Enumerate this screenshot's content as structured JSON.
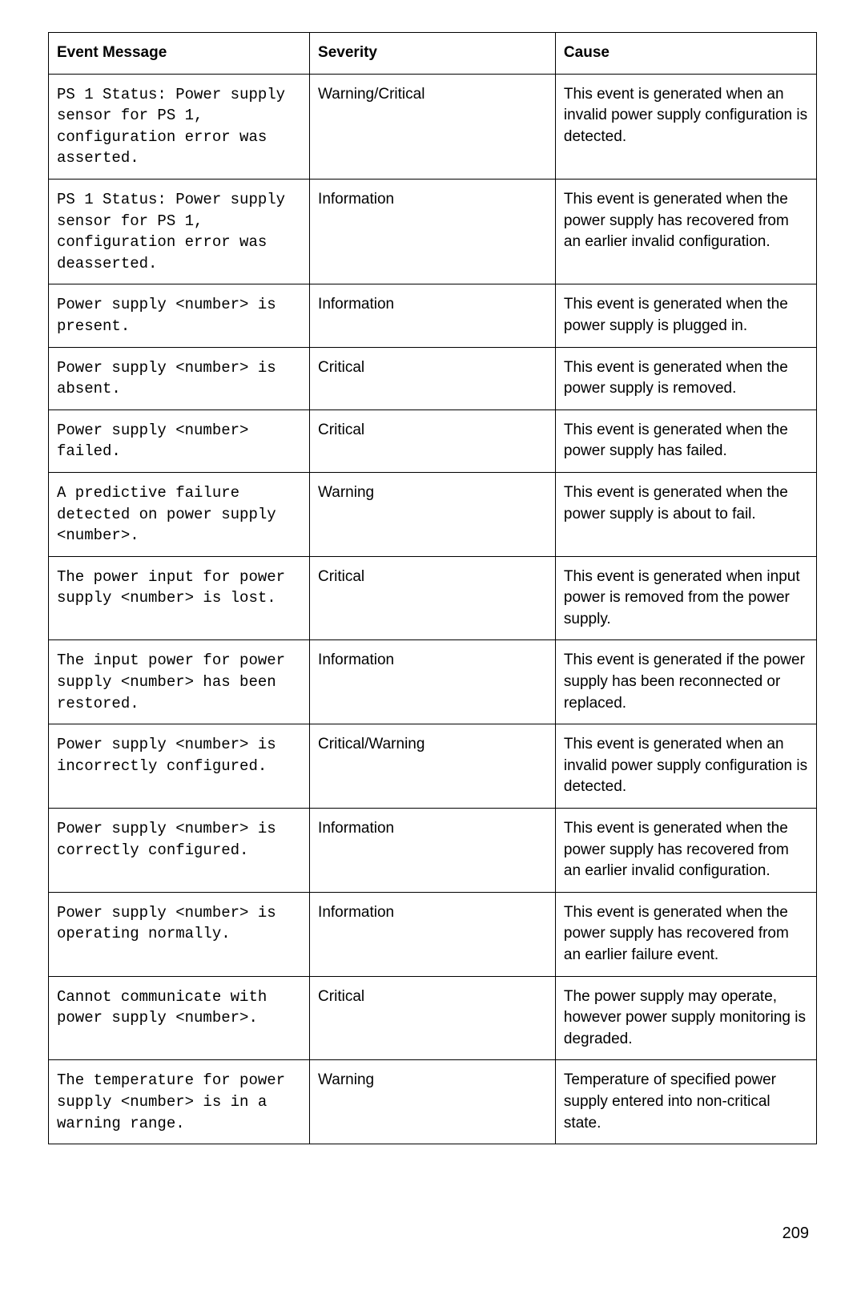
{
  "table": {
    "columns": [
      "Event Message",
      "Severity",
      "Cause"
    ],
    "rows": [
      {
        "message": "PS 1 Status: Power supply sensor for PS 1, configuration error was asserted.",
        "severity": "Warning/Critical",
        "cause": "This event is generated when an invalid power supply configuration is detected."
      },
      {
        "message": "PS 1 Status: Power supply sensor for PS 1, configuration error was deasserted.",
        "severity": "Information",
        "cause": "This event is generated when the power supply has recovered from an earlier invalid configuration."
      },
      {
        "message": "Power supply <number> is present.",
        "severity": "Information",
        "cause": "This event is generated when the power supply is plugged in."
      },
      {
        "message": "Power supply <number> is absent.",
        "severity": "Critical",
        "cause": "This event is generated when the power supply is removed."
      },
      {
        "message": "Power supply <number> failed.",
        "severity": "Critical",
        "cause": "This event is generated when the power supply has failed."
      },
      {
        "message": "A predictive failure detected on power supply <number>.",
        "severity": "Warning",
        "cause": "This event is generated when the power supply is about to fail."
      },
      {
        "message": "The power input for power supply <number> is lost.",
        "severity": "Critical",
        "cause": "This event is generated when input power is removed from the power supply."
      },
      {
        "message": "The input power for power supply <number> has been restored.",
        "severity": "Information",
        "cause": "This event is generated if the power supply has been reconnected or replaced."
      },
      {
        "message": "Power supply <number> is incorrectly configured.",
        "severity": "Critical/Warning",
        "cause": "This event is generated when an invalid power supply configuration is detected."
      },
      {
        "message": "Power supply <number> is correctly configured.",
        "severity": "Information",
        "cause": "This event is generated when the power supply has recovered from an earlier invalid configuration."
      },
      {
        "message": "Power supply <number> is operating normally.",
        "severity": "Information",
        "cause": "This event is generated when the power supply has recovered from an earlier failure event."
      },
      {
        "message": "Cannot communicate with power supply <number>.",
        "severity": "Critical",
        "cause": "The power supply may operate, however power supply monitoring is degraded."
      },
      {
        "message": "The temperature for power supply <number> is in a warning range.",
        "severity": "Warning",
        "cause": "Temperature of specified power supply entered into non-critical state."
      }
    ]
  },
  "page_number": "209"
}
